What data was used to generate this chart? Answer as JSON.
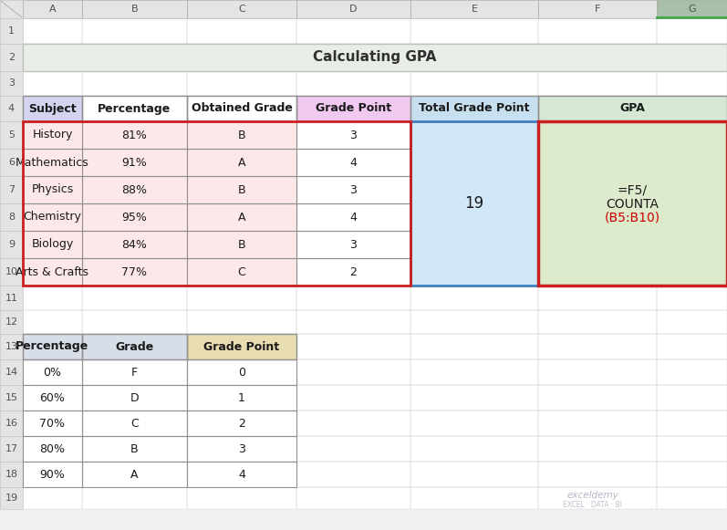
{
  "title": "Calculating GPA",
  "title_bg": "#e8ede6",
  "col_headers": [
    "Subject",
    "Percentage",
    "Obtained Grade",
    "Grade Point",
    "Total Grade Point",
    "GPA"
  ],
  "col_header_bg": [
    "#d4d4f0",
    "#ffffff",
    "#ffffff",
    "#f0c8f0",
    "#c8dff0",
    "#d4e8d4"
  ],
  "main_data": [
    [
      "History",
      "81%",
      "B",
      "3"
    ],
    [
      "Mathematics",
      "91%",
      "A",
      "4"
    ],
    [
      "Physics",
      "88%",
      "B",
      "3"
    ],
    [
      "Chemistry",
      "95%",
      "A",
      "4"
    ],
    [
      "Biology",
      "84%",
      "B",
      "3"
    ],
    [
      "Arts & Crafts",
      "77%",
      "C",
      "2"
    ]
  ],
  "total_grade_point": "19",
  "ref_headers": [
    "Percentage",
    "Grade",
    "Grade Point"
  ],
  "ref_header_bg": [
    "#d8dee8",
    "#d8dee8",
    "#e8ddb0"
  ],
  "ref_data": [
    [
      "0%",
      "F",
      "0"
    ],
    [
      "60%",
      "D",
      "1"
    ],
    [
      "70%",
      "C",
      "2"
    ],
    [
      "80%",
      "B",
      "3"
    ],
    [
      "90%",
      "A",
      "4"
    ]
  ],
  "col_letters": [
    "A",
    "B",
    "C",
    "D",
    "E",
    "F",
    "G"
  ],
  "row_numbers": [
    "1",
    "2",
    "3",
    "4",
    "5",
    "6",
    "7",
    "8",
    "9",
    "10",
    "11",
    "12",
    "13",
    "14",
    "15",
    "16",
    "17",
    "18",
    "19"
  ],
  "bg_color": "#f0f0f0",
  "header_bg": "#e4e4e4",
  "g_col_header_bg": "#a8c0a8",
  "green_underline": "#4aa44a"
}
